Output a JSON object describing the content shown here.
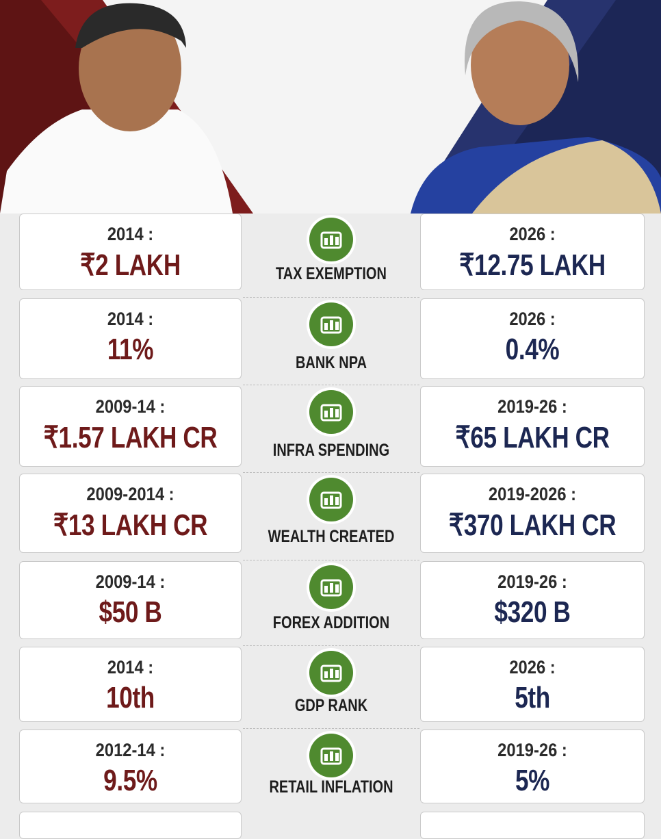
{
  "rows": [
    {
      "left_period": "2014 :",
      "left_value": "₹2 LAKH",
      "label": "TAX EXEMPTION",
      "right_period": "2026 :",
      "right_value": "₹12.75 LAKH"
    },
    {
      "left_period": "2014 :",
      "left_value": "11%",
      "label": "BANK NPA",
      "right_period": "2026 :",
      "right_value": "0.4%"
    },
    {
      "left_period": "2009-14 :",
      "left_value": "₹1.57 LAKH CR",
      "label": "INFRA SPENDING",
      "right_period": "2019-26 :",
      "right_value": "₹65 LAKH CR"
    },
    {
      "left_period": "2009-2014 :",
      "left_value": "₹13 LAKH CR",
      "label": "WEALTH CREATED",
      "right_period": "2019-2026 :",
      "right_value": "₹370 LAKH CR"
    },
    {
      "left_period": "2009-14 :",
      "left_value": "$50 B",
      "label": "FOREX ADDITION",
      "right_period": "2019-26 :",
      "right_value": "$320 B"
    },
    {
      "left_period": "2014 :",
      "left_value": "10th",
      "label": "GDP RANK",
      "right_period": "2026 :",
      "right_value": "5th"
    },
    {
      "left_period": "2012-14 :",
      "left_value": "9.5%",
      "label": "RETAIL INFLATION",
      "right_period": "2019-26 :",
      "right_value": "5%"
    }
  ]
}
